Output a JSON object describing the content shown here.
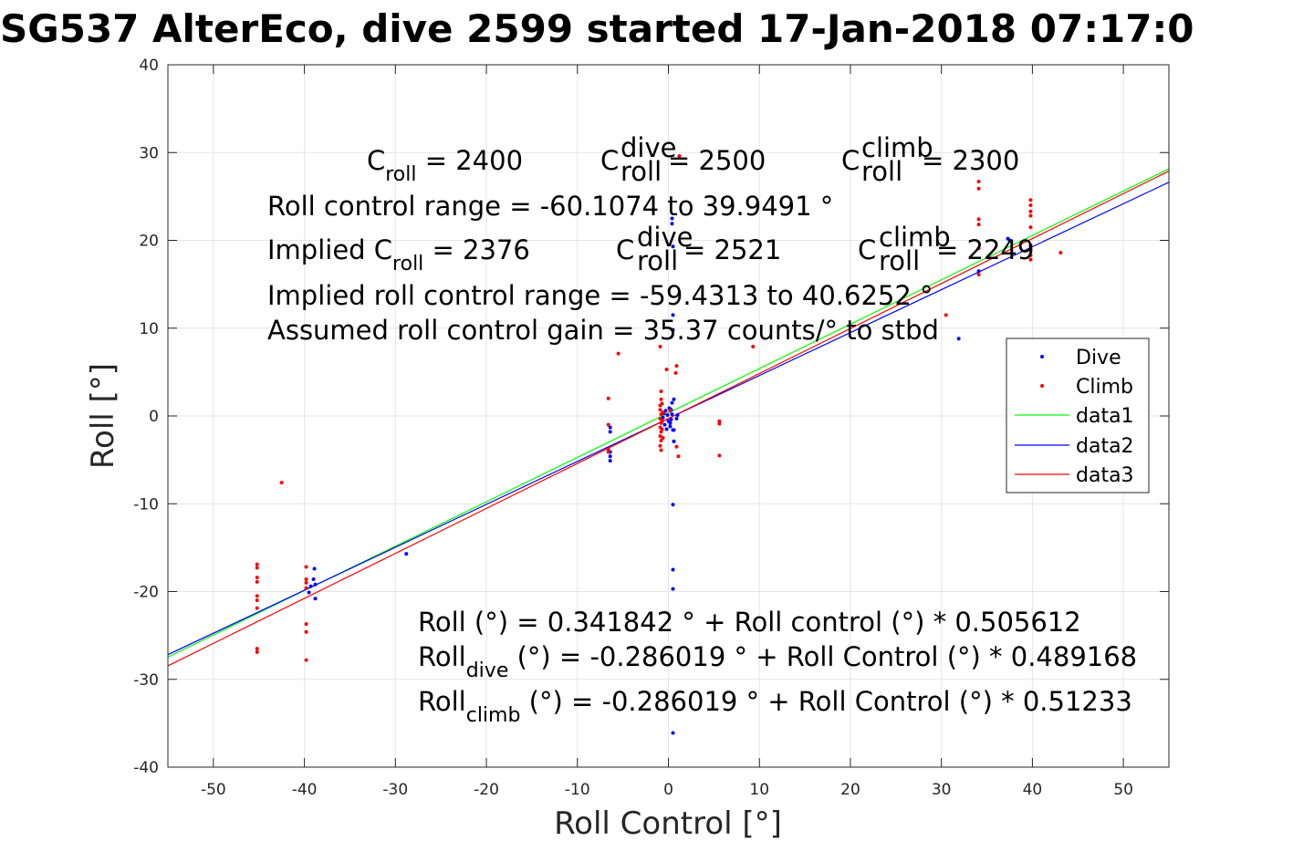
{
  "chart_data": {
    "type": "scatter",
    "title": "SG537 AlterEco, dive 2599 started 17-Jan-2018 07:17:0",
    "xlabel": "Roll Control [°]",
    "ylabel": "Roll [°]",
    "xlim": [
      -55,
      55
    ],
    "ylim": [
      -40,
      40
    ],
    "xticks": [
      -50,
      -40,
      -30,
      -20,
      -10,
      0,
      10,
      20,
      30,
      40,
      50
    ],
    "yticks": [
      -40,
      -30,
      -20,
      -10,
      0,
      10,
      20,
      30,
      40
    ],
    "grid": true,
    "legend_position": "right",
    "series": [
      {
        "name": "Dive",
        "kind": "points",
        "color": "#0000ff",
        "points": [
          [
            -39.5,
            -20.1
          ],
          [
            -39.3,
            -19.4
          ],
          [
            -39.0,
            -18.6
          ],
          [
            -38.9,
            -17.4
          ],
          [
            -38.8,
            -19.2
          ],
          [
            -38.8,
            -20.8
          ],
          [
            -28.8,
            -15.7
          ],
          [
            -6.4,
            -1.3
          ],
          [
            -6.4,
            -1.8
          ],
          [
            -6.4,
            -4.1
          ],
          [
            -6.4,
            -4.6
          ],
          [
            -6.4,
            -5.1
          ],
          [
            -0.6,
            -0.2
          ],
          [
            -0.5,
            0.3
          ],
          [
            -0.4,
            -1.0
          ],
          [
            -0.3,
            0.6
          ],
          [
            -0.2,
            -1.5
          ],
          [
            -0.1,
            0.1
          ],
          [
            0.0,
            -0.6
          ],
          [
            0.1,
            0.9
          ],
          [
            0.2,
            -1.2
          ],
          [
            0.3,
            -0.4
          ],
          [
            0.4,
            1.5
          ],
          [
            0.5,
            -1.6
          ],
          [
            0.4,
            0.2
          ],
          [
            0.3,
            0.7
          ],
          [
            0.2,
            -0.8
          ],
          [
            0.4,
            22.5
          ],
          [
            0.4,
            21.9
          ],
          [
            0.5,
            19.3
          ],
          [
            0.5,
            11.5
          ],
          [
            0.5,
            9.8
          ],
          [
            0.6,
            1.9
          ],
          [
            0.6,
            -1.6
          ],
          [
            0.6,
            -2.9
          ],
          [
            0.5,
            -10.1
          ],
          [
            0.5,
            -17.5
          ],
          [
            0.5,
            -19.7
          ],
          [
            0.5,
            -36.1
          ],
          [
            0.9,
            -0.3
          ],
          [
            1.0,
            0.1
          ],
          [
            37.3,
            20.2
          ],
          [
            37.5,
            20.0
          ],
          [
            34.1,
            16.5
          ],
          [
            31.9,
            8.8
          ]
        ]
      },
      {
        "name": "Climb",
        "kind": "points",
        "color": "#ff0000",
        "points": [
          [
            -45.2,
            -16.9
          ],
          [
            -45.2,
            -17.3
          ],
          [
            -45.2,
            -18.4
          ],
          [
            -45.2,
            -18.9
          ],
          [
            -45.2,
            -20.5
          ],
          [
            -45.2,
            -21.0
          ],
          [
            -45.2,
            -21.9
          ],
          [
            -45.2,
            -26.5
          ],
          [
            -45.2,
            -26.9
          ],
          [
            -42.5,
            -7.6
          ],
          [
            -39.8,
            -17.2
          ],
          [
            -39.8,
            -18.6
          ],
          [
            -39.8,
            -19.0
          ],
          [
            -39.8,
            -19.6
          ],
          [
            -39.8,
            -23.7
          ],
          [
            -39.8,
            -24.6
          ],
          [
            -39.8,
            -27.8
          ],
          [
            -6.6,
            2.0
          ],
          [
            -6.6,
            -1.0
          ],
          [
            -6.6,
            -3.8
          ],
          [
            -6.6,
            -4.1
          ],
          [
            -5.5,
            7.1
          ],
          [
            -0.9,
            7.9
          ],
          [
            -0.8,
            2.8
          ],
          [
            -0.8,
            1.9
          ],
          [
            -0.9,
            1.2
          ],
          [
            -0.9,
            0.7
          ],
          [
            -0.8,
            0.2
          ],
          [
            -0.9,
            -0.3
          ],
          [
            -0.8,
            -0.8
          ],
          [
            -0.9,
            -1.3
          ],
          [
            -0.8,
            -1.8
          ],
          [
            -0.9,
            -2.3
          ],
          [
            -0.8,
            -2.8
          ],
          [
            -0.9,
            -3.4
          ],
          [
            -0.8,
            -3.9
          ],
          [
            -0.7,
            1.4
          ],
          [
            -0.7,
            -0.6
          ],
          [
            -0.6,
            0.4
          ],
          [
            -0.7,
            -1.5
          ],
          [
            -0.6,
            -2.5
          ],
          [
            -0.2,
            5.3
          ],
          [
            0.2,
            0.6
          ],
          [
            0.8,
            4.9
          ],
          [
            0.9,
            5.7
          ],
          [
            0.9,
            -3.5
          ],
          [
            1.1,
            -4.6
          ],
          [
            1.2,
            29.6
          ],
          [
            5.6,
            -0.6
          ],
          [
            5.6,
            -0.9
          ],
          [
            5.6,
            -4.5
          ],
          [
            9.3,
            7.9
          ],
          [
            30.5,
            11.5
          ],
          [
            34.1,
            26.7
          ],
          [
            34.1,
            25.9
          ],
          [
            34.1,
            22.4
          ],
          [
            34.1,
            21.8
          ],
          [
            34.1,
            19.1
          ],
          [
            34.1,
            16.1
          ],
          [
            39.8,
            24.6
          ],
          [
            39.8,
            24.0
          ],
          [
            39.8,
            23.3
          ],
          [
            39.8,
            22.8
          ],
          [
            39.8,
            21.5
          ],
          [
            39.8,
            19.4
          ],
          [
            39.8,
            18.9
          ],
          [
            39.8,
            18.3
          ],
          [
            39.8,
            17.8
          ],
          [
            43.1,
            18.6
          ]
        ]
      },
      {
        "name": "data1",
        "kind": "line",
        "color": "#00ff00",
        "intercept": 0.341842,
        "slope": 0.505612
      },
      {
        "name": "data2",
        "kind": "line",
        "color": "#0000ff",
        "intercept": -0.286019,
        "slope": 0.489168
      },
      {
        "name": "data3",
        "kind": "line",
        "color": "#ff0000",
        "intercept": -0.286019,
        "slope": 0.51233
      }
    ]
  },
  "annotations": {
    "c_roll": {
      "main": "C",
      "sub": "roll",
      "rest": " = 2400"
    },
    "c_roll_dive": {
      "main": "C",
      "sup": "dive",
      "sub": "roll",
      "rest": " = 2500"
    },
    "c_roll_climb": {
      "main": "C",
      "sup": "climb",
      "sub": "roll",
      "rest": " = 2300"
    },
    "roll_control_range": "Roll control range = -60.1074 to 39.9491 °",
    "implied_c_roll": {
      "prefix": "Implied C",
      "sub": "roll",
      "rest": " = 2376"
    },
    "implied_c_roll_dive": {
      "main": "C",
      "sup": "dive",
      "sub": "roll",
      "rest": " = 2521"
    },
    "implied_c_roll_climb": {
      "main": "C",
      "sup": "climb",
      "sub": "roll",
      "rest": " = 2249"
    },
    "implied_range": "Implied roll control range = -59.4313 to 40.6252 °",
    "assumed_gain": "Assumed roll control gain = 35.37 counts/° to stbd",
    "fit_all": "Roll (°) = 0.341842 ° + Roll control (°) * 0.505612",
    "fit_dive": {
      "main": "Roll",
      "sub": "dive",
      "rest": " (°) = -0.286019 ° + Roll Control (°) * 0.489168"
    },
    "fit_climb": {
      "main": "Roll",
      "sub": "climb",
      "rest": " (°) = -0.286019 ° + Roll Control (°) * 0.51233"
    }
  }
}
